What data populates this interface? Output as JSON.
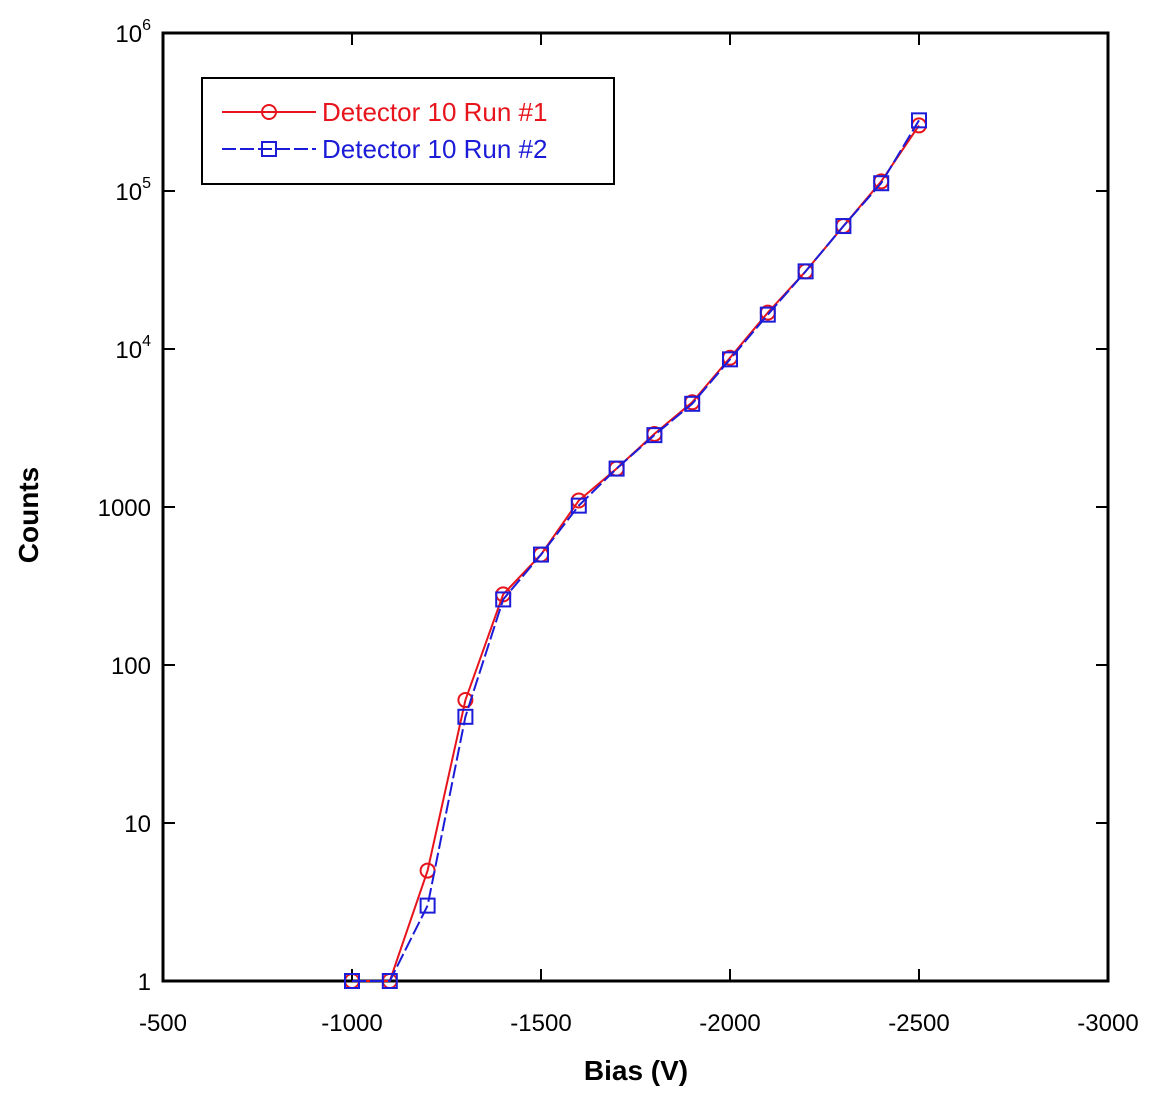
{
  "chart_data": {
    "type": "line",
    "title": "",
    "xlabel": "Bias (V)",
    "ylabel": "Counts",
    "xlim": [
      -500,
      -3000
    ],
    "ylim": [
      1,
      1000000
    ],
    "yscale": "log",
    "grid": false,
    "legend_position": "top-left",
    "x_ticks": [
      -500,
      -1000,
      -1500,
      -2000,
      -2500,
      -3000
    ],
    "x_tick_labels": [
      "-500",
      "-1000",
      "-1500",
      "-2000",
      "-2500",
      "-3000"
    ],
    "y_ticks": [
      1,
      10,
      100,
      1000,
      10000,
      100000,
      1000000
    ],
    "y_tick_labels": [
      {
        "base": "1",
        "exp": ""
      },
      {
        "base": "10",
        "exp": ""
      },
      {
        "base": "100",
        "exp": ""
      },
      {
        "base": "1000",
        "exp": ""
      },
      {
        "base": "10",
        "exp": "4"
      },
      {
        "base": "10",
        "exp": "5"
      },
      {
        "base": "10",
        "exp": "6"
      }
    ],
    "series": [
      {
        "name": "Detector 10 Run #1",
        "color": "#e8141c",
        "marker": "circle",
        "line_style": "solid",
        "x": [
          -1000,
          -1100,
          -1200,
          -1300,
          -1400,
          -1500,
          -1600,
          -1700,
          -1800,
          -1900,
          -2000,
          -2100,
          -2200,
          -2300,
          -2400,
          -2500
        ],
        "y": [
          1,
          1,
          5,
          60,
          280,
          500,
          1100,
          1750,
          2900,
          4600,
          8800,
          17000,
          31000,
          60000,
          115000,
          260000
        ]
      },
      {
        "name": "Detector 10 Run #2",
        "color": "#1c1cd8",
        "marker": "square",
        "line_style": "dashed",
        "x": [
          -1000,
          -1100,
          -1200,
          -1300,
          -1400,
          -1500,
          -1600,
          -1700,
          -1800,
          -1900,
          -2000,
          -2100,
          -2200,
          -2300,
          -2400,
          -2500
        ],
        "y": [
          1,
          1,
          3,
          47,
          260,
          500,
          1020,
          1750,
          2850,
          4500,
          8600,
          16500,
          31000,
          60000,
          112000,
          280000
        ]
      }
    ]
  }
}
